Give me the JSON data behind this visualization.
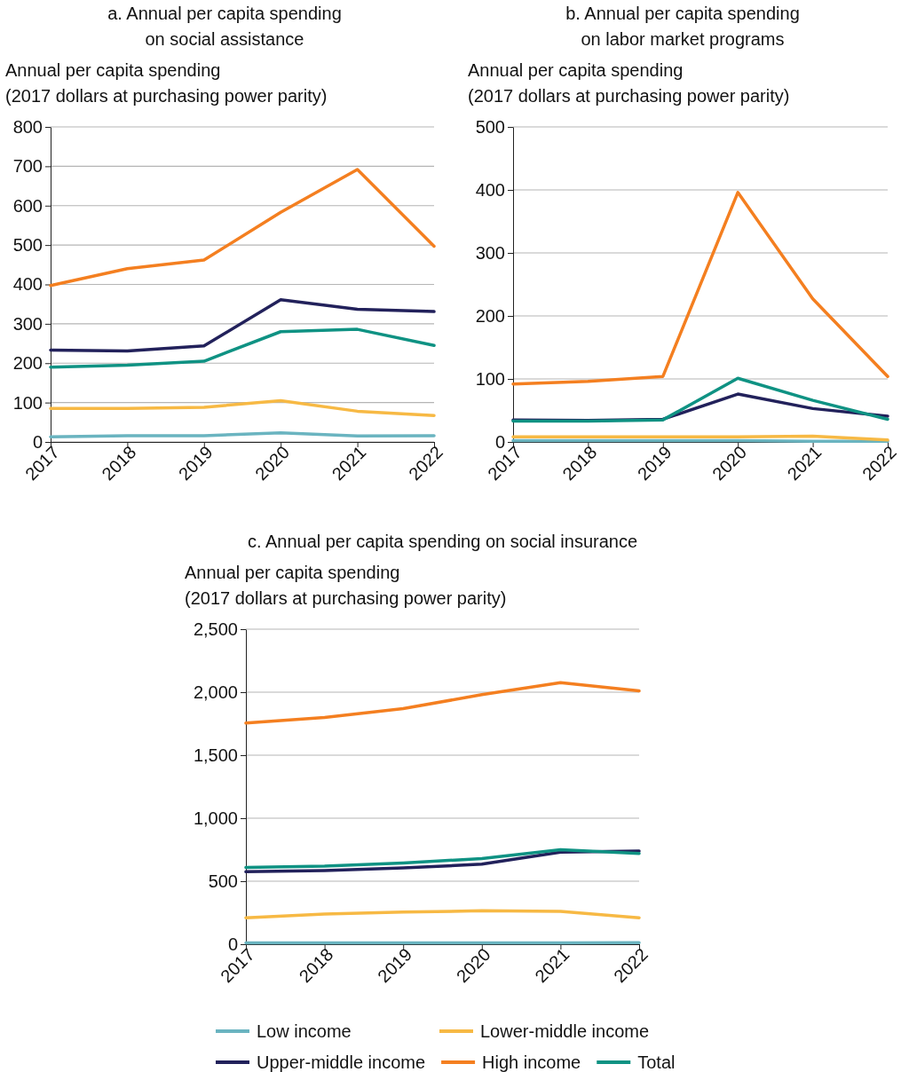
{
  "chart_data": [
    {
      "type": "line",
      "title": "a. Annual per capita spending\non social assistance",
      "ylabel": "Annual per capita spending\n(2017 dollars at purchasing power parity)",
      "categories": [
        "2017",
        "2018",
        "2019",
        "2020",
        "2021",
        "2022"
      ],
      "ylim": [
        0,
        800
      ],
      "yticks": [
        0,
        100,
        200,
        300,
        400,
        500,
        600,
        700,
        800
      ],
      "grid": "y",
      "legend": false,
      "marker": "none",
      "line_style": "solid",
      "series": [
        {
          "color": "#6ab4c0",
          "values": [
            13,
            16,
            16,
            23,
            15,
            16
          ]
        },
        {
          "color": "#f7b944",
          "values": [
            85,
            85,
            88,
            105,
            78,
            67
          ]
        },
        {
          "color": "#22215b",
          "values": [
            233,
            231,
            244,
            361,
            337,
            331
          ]
        },
        {
          "color": "#f47f20",
          "values": [
            397,
            440,
            462,
            583,
            692,
            497
          ]
        },
        {
          "color": "#0f9283",
          "values": [
            190,
            195,
            205,
            280,
            286,
            245
          ]
        }
      ]
    },
    {
      "type": "line",
      "title": "b. Annual per capita spending\non labor market programs",
      "ylabel": "Annual per capita spending\n(2017 dollars at purchasing power parity)",
      "categories": [
        "2017",
        "2018",
        "2019",
        "2020",
        "2021",
        "2022"
      ],
      "ylim": [
        0,
        500
      ],
      "yticks": [
        0,
        100,
        200,
        300,
        400,
        500
      ],
      "grid": "y",
      "legend": false,
      "marker": "none",
      "line_style": "solid",
      "series": [
        {
          "color": "#6ab4c0",
          "values": [
            2,
            2,
            2,
            2,
            1,
            1
          ]
        },
        {
          "color": "#f7b944",
          "values": [
            8,
            8,
            8,
            8,
            9,
            3
          ]
        },
        {
          "color": "#22215b",
          "values": [
            35,
            34,
            36,
            76,
            53,
            41
          ]
        },
        {
          "color": "#f47f20",
          "values": [
            92,
            96,
            104,
            396,
            227,
            104
          ]
        },
        {
          "color": "#0f9283",
          "values": [
            33,
            33,
            35,
            101,
            66,
            36
          ]
        }
      ]
    },
    {
      "type": "line",
      "title": "c. Annual per capita spending on social insurance",
      "ylabel": "Annual per capita spending\n(2017 dollars at purchasing power parity)",
      "categories": [
        "2017",
        "2018",
        "2019",
        "2020",
        "2021",
        "2022"
      ],
      "ylim": [
        0,
        2500
      ],
      "yticks": [
        {
          "value": 0,
          "label": "0"
        },
        {
          "value": 500,
          "label": "500"
        },
        {
          "value": 1000,
          "label": "1,000"
        },
        {
          "value": 1500,
          "label": "1,500"
        },
        {
          "value": 2000,
          "label": "2,000"
        },
        {
          "value": 2500,
          "label": "2,500"
        }
      ],
      "grid": "y",
      "legend": "bottom",
      "marker": "none",
      "line_style": "solid",
      "series": [
        {
          "name": "Low income",
          "color": "#6ab4c0",
          "values": [
            10,
            10,
            10,
            10,
            10,
            12
          ]
        },
        {
          "name": "Lower-middle income",
          "color": "#f7b944",
          "values": [
            210,
            240,
            255,
            265,
            260,
            210
          ]
        },
        {
          "name": "Upper-middle income",
          "color": "#22215b",
          "values": [
            575,
            585,
            605,
            635,
            730,
            740
          ]
        },
        {
          "name": "High income",
          "color": "#f47f20",
          "values": [
            1755,
            1800,
            1870,
            1980,
            2075,
            2010
          ]
        },
        {
          "name": "Total",
          "color": "#0f9283",
          "values": [
            610,
            620,
            645,
            680,
            750,
            720
          ]
        }
      ]
    }
  ]
}
